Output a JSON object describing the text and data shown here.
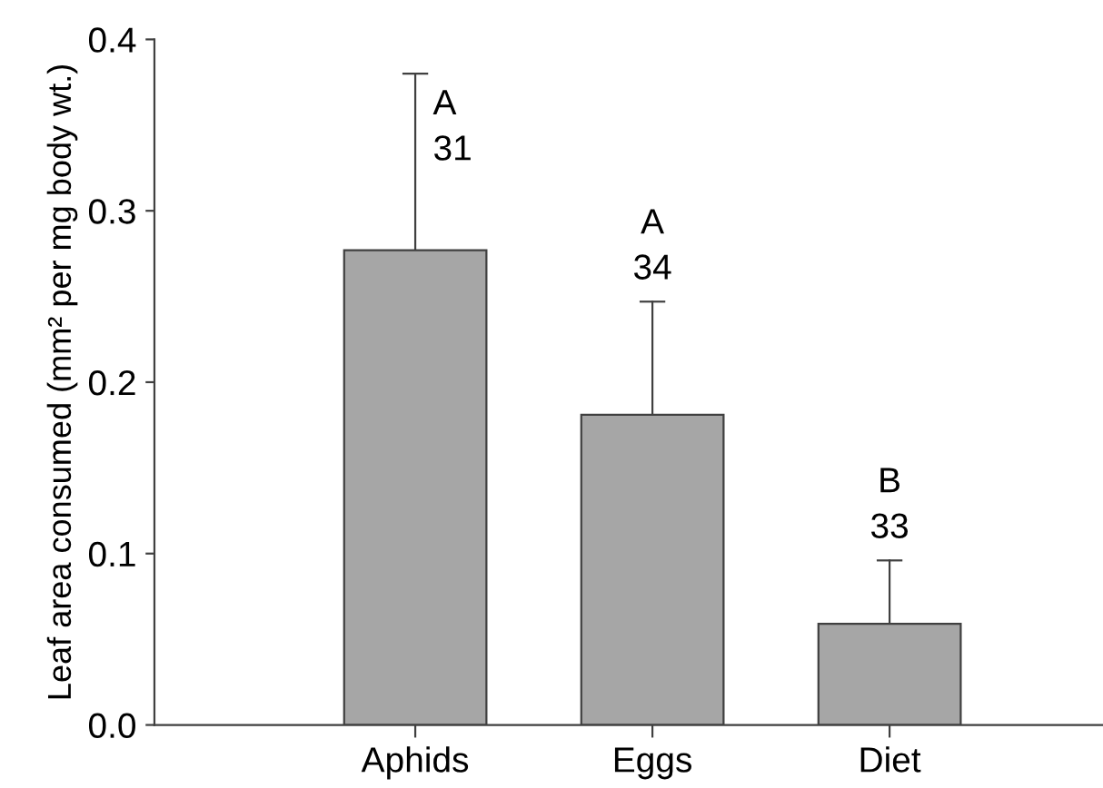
{
  "chart_data": {
    "type": "bar",
    "ylabel": "Leaf area consumed (mm² per mg body wt.)",
    "categories": [
      "Aphids",
      "Eggs",
      "Diet"
    ],
    "values": [
      0.277,
      0.181,
      0.059
    ],
    "errors": [
      [
        0.277,
        0.38
      ],
      [
        0.181,
        0.247
      ],
      [
        0.059,
        0.096
      ]
    ],
    "color": "#a6a6a6",
    "ylim": [
      0,
      0.4
    ],
    "yticks": [
      {
        "value": 0,
        "label": "0.0"
      },
      0.1,
      0.2,
      0.3,
      0.4
    ],
    "grid": false,
    "legend": false,
    "annotations": [
      {
        "text": "A\n31",
        "x": "Aphids",
        "y": 0.38
      },
      {
        "text": "A\n34",
        "x": "Eggs",
        "y": 0.247
      },
      {
        "text": "B\n33",
        "x": "Diet",
        "y": 0.096
      }
    ]
  }
}
